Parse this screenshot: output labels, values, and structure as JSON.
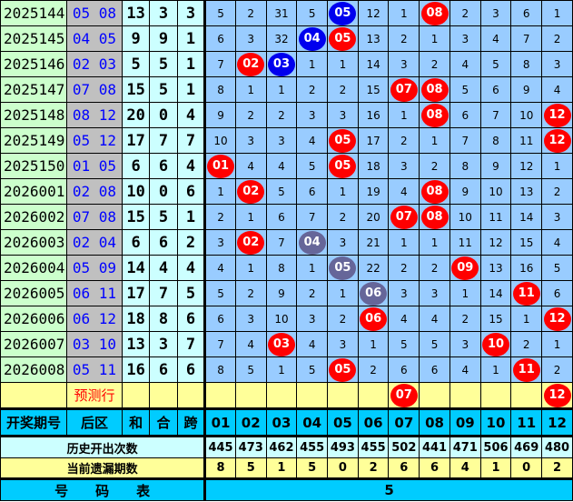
{
  "colors": {
    "red": "#ff0000",
    "blue": "#0000ee",
    "grey": "#666699"
  },
  "rows": [
    {
      "issue": "2025144",
      "back": "05  08",
      "he": "13",
      "he2": "3",
      "kua": "3",
      "cells": [
        5,
        2,
        31,
        5,
        {
          "b": "05",
          "c": "blue"
        },
        12,
        1,
        {
          "b": "08",
          "c": "red"
        },
        2,
        3,
        6,
        1
      ]
    },
    {
      "issue": "2025145",
      "back": "04  05",
      "he": "9",
      "he2": "9",
      "kua": "1",
      "cells": [
        6,
        3,
        32,
        {
          "b": "04",
          "c": "blue"
        },
        {
          "b": "05",
          "c": "red"
        },
        13,
        2,
        1,
        3,
        4,
        7,
        2
      ]
    },
    {
      "issue": "2025146",
      "back": "02  03",
      "he": "5",
      "he2": "5",
      "kua": "1",
      "cells": [
        7,
        {
          "b": "02",
          "c": "red"
        },
        {
          "b": "03",
          "c": "blue"
        },
        1,
        1,
        14,
        3,
        2,
        4,
        5,
        8,
        3
      ]
    },
    {
      "issue": "2025147",
      "back": "07  08",
      "he": "15",
      "he2": "5",
      "kua": "1",
      "cells": [
        8,
        1,
        1,
        2,
        2,
        15,
        {
          "b": "07",
          "c": "red"
        },
        {
          "b": "08",
          "c": "red"
        },
        5,
        6,
        9,
        4
      ]
    },
    {
      "issue": "2025148",
      "back": "08  12",
      "he": "20",
      "he2": "0",
      "kua": "4",
      "cells": [
        9,
        2,
        2,
        3,
        3,
        16,
        1,
        {
          "b": "08",
          "c": "red"
        },
        6,
        7,
        10,
        {
          "b": "12",
          "c": "red"
        }
      ]
    },
    {
      "issue": "2025149",
      "back": "05  12",
      "he": "17",
      "he2": "7",
      "kua": "7",
      "cells": [
        10,
        3,
        3,
        4,
        {
          "b": "05",
          "c": "red"
        },
        17,
        2,
        1,
        7,
        8,
        11,
        {
          "b": "12",
          "c": "red"
        }
      ]
    },
    {
      "issue": "2025150",
      "back": "01  05",
      "he": "6",
      "he2": "6",
      "kua": "4",
      "cells": [
        {
          "b": "01",
          "c": "red"
        },
        4,
        4,
        5,
        {
          "b": "05",
          "c": "red"
        },
        18,
        3,
        2,
        8,
        9,
        12,
        1
      ]
    },
    {
      "issue": "2026001",
      "back": "02  08",
      "he": "10",
      "he2": "0",
      "kua": "6",
      "cells": [
        1,
        {
          "b": "02",
          "c": "red"
        },
        5,
        6,
        1,
        19,
        4,
        {
          "b": "08",
          "c": "red"
        },
        9,
        10,
        13,
        2
      ]
    },
    {
      "issue": "2026002",
      "back": "07  08",
      "he": "15",
      "he2": "5",
      "kua": "1",
      "cells": [
        2,
        1,
        6,
        7,
        2,
        20,
        {
          "b": "07",
          "c": "red"
        },
        {
          "b": "08",
          "c": "red"
        },
        10,
        11,
        14,
        3
      ]
    },
    {
      "issue": "2026003",
      "back": "02  04",
      "he": "6",
      "he2": "6",
      "kua": "2",
      "cells": [
        3,
        {
          "b": "02",
          "c": "red"
        },
        7,
        {
          "b": "04",
          "c": "grey"
        },
        3,
        21,
        1,
        1,
        11,
        12,
        15,
        4
      ]
    },
    {
      "issue": "2026004",
      "back": "05  09",
      "he": "14",
      "he2": "4",
      "kua": "4",
      "cells": [
        4,
        1,
        8,
        1,
        {
          "b": "05",
          "c": "grey"
        },
        22,
        2,
        2,
        {
          "b": "09",
          "c": "red"
        },
        13,
        16,
        5
      ]
    },
    {
      "issue": "2026005",
      "back": "06  11",
      "he": "17",
      "he2": "7",
      "kua": "5",
      "cells": [
        5,
        2,
        9,
        2,
        1,
        {
          "b": "06",
          "c": "grey"
        },
        3,
        3,
        1,
        14,
        {
          "b": "11",
          "c": "red"
        },
        6
      ]
    },
    {
      "issue": "2026006",
      "back": "06  12",
      "he": "18",
      "he2": "8",
      "kua": "6",
      "cells": [
        6,
        3,
        10,
        3,
        2,
        {
          "b": "06",
          "c": "red"
        },
        4,
        4,
        2,
        15,
        1,
        {
          "b": "12",
          "c": "red"
        }
      ]
    },
    {
      "issue": "2026007",
      "back": "03  10",
      "he": "13",
      "he2": "3",
      "kua": "7",
      "cells": [
        7,
        4,
        {
          "b": "03",
          "c": "red"
        },
        4,
        3,
        1,
        5,
        5,
        3,
        {
          "b": "10",
          "c": "red"
        },
        2,
        1
      ]
    },
    {
      "issue": "2026008",
      "back": "05  11",
      "he": "16",
      "he2": "6",
      "kua": "6",
      "cells": [
        8,
        5,
        1,
        5,
        {
          "b": "05",
          "c": "red"
        },
        2,
        6,
        6,
        4,
        1,
        {
          "b": "11",
          "c": "red"
        },
        2
      ]
    }
  ],
  "prediction": {
    "label": "预测行",
    "cells": [
      "",
      "",
      "",
      "",
      "",
      "",
      {
        "b": "07",
        "c": "red"
      },
      "",
      "",
      "",
      "",
      {
        "b": "12",
        "c": "red"
      }
    ]
  },
  "header": {
    "issue": "开奖期号",
    "back": "后区",
    "he": "和",
    "he2": "合",
    "kua": "跨",
    "numbers": [
      "01",
      "02",
      "03",
      "04",
      "05",
      "06",
      "07",
      "08",
      "09",
      "10",
      "11",
      "12"
    ]
  },
  "history": {
    "label": "历史开出次数",
    "values": [
      "445",
      "473",
      "462",
      "455",
      "493",
      "455",
      "502",
      "441",
      "471",
      "506",
      "469",
      "480"
    ]
  },
  "missing": {
    "label": "当前遗漏期数",
    "values": [
      "8",
      "5",
      "1",
      "5",
      "0",
      "2",
      "6",
      "6",
      "4",
      "1",
      "0",
      "2"
    ]
  },
  "footer": {
    "label": "号　　码　　表",
    "value": "5"
  }
}
